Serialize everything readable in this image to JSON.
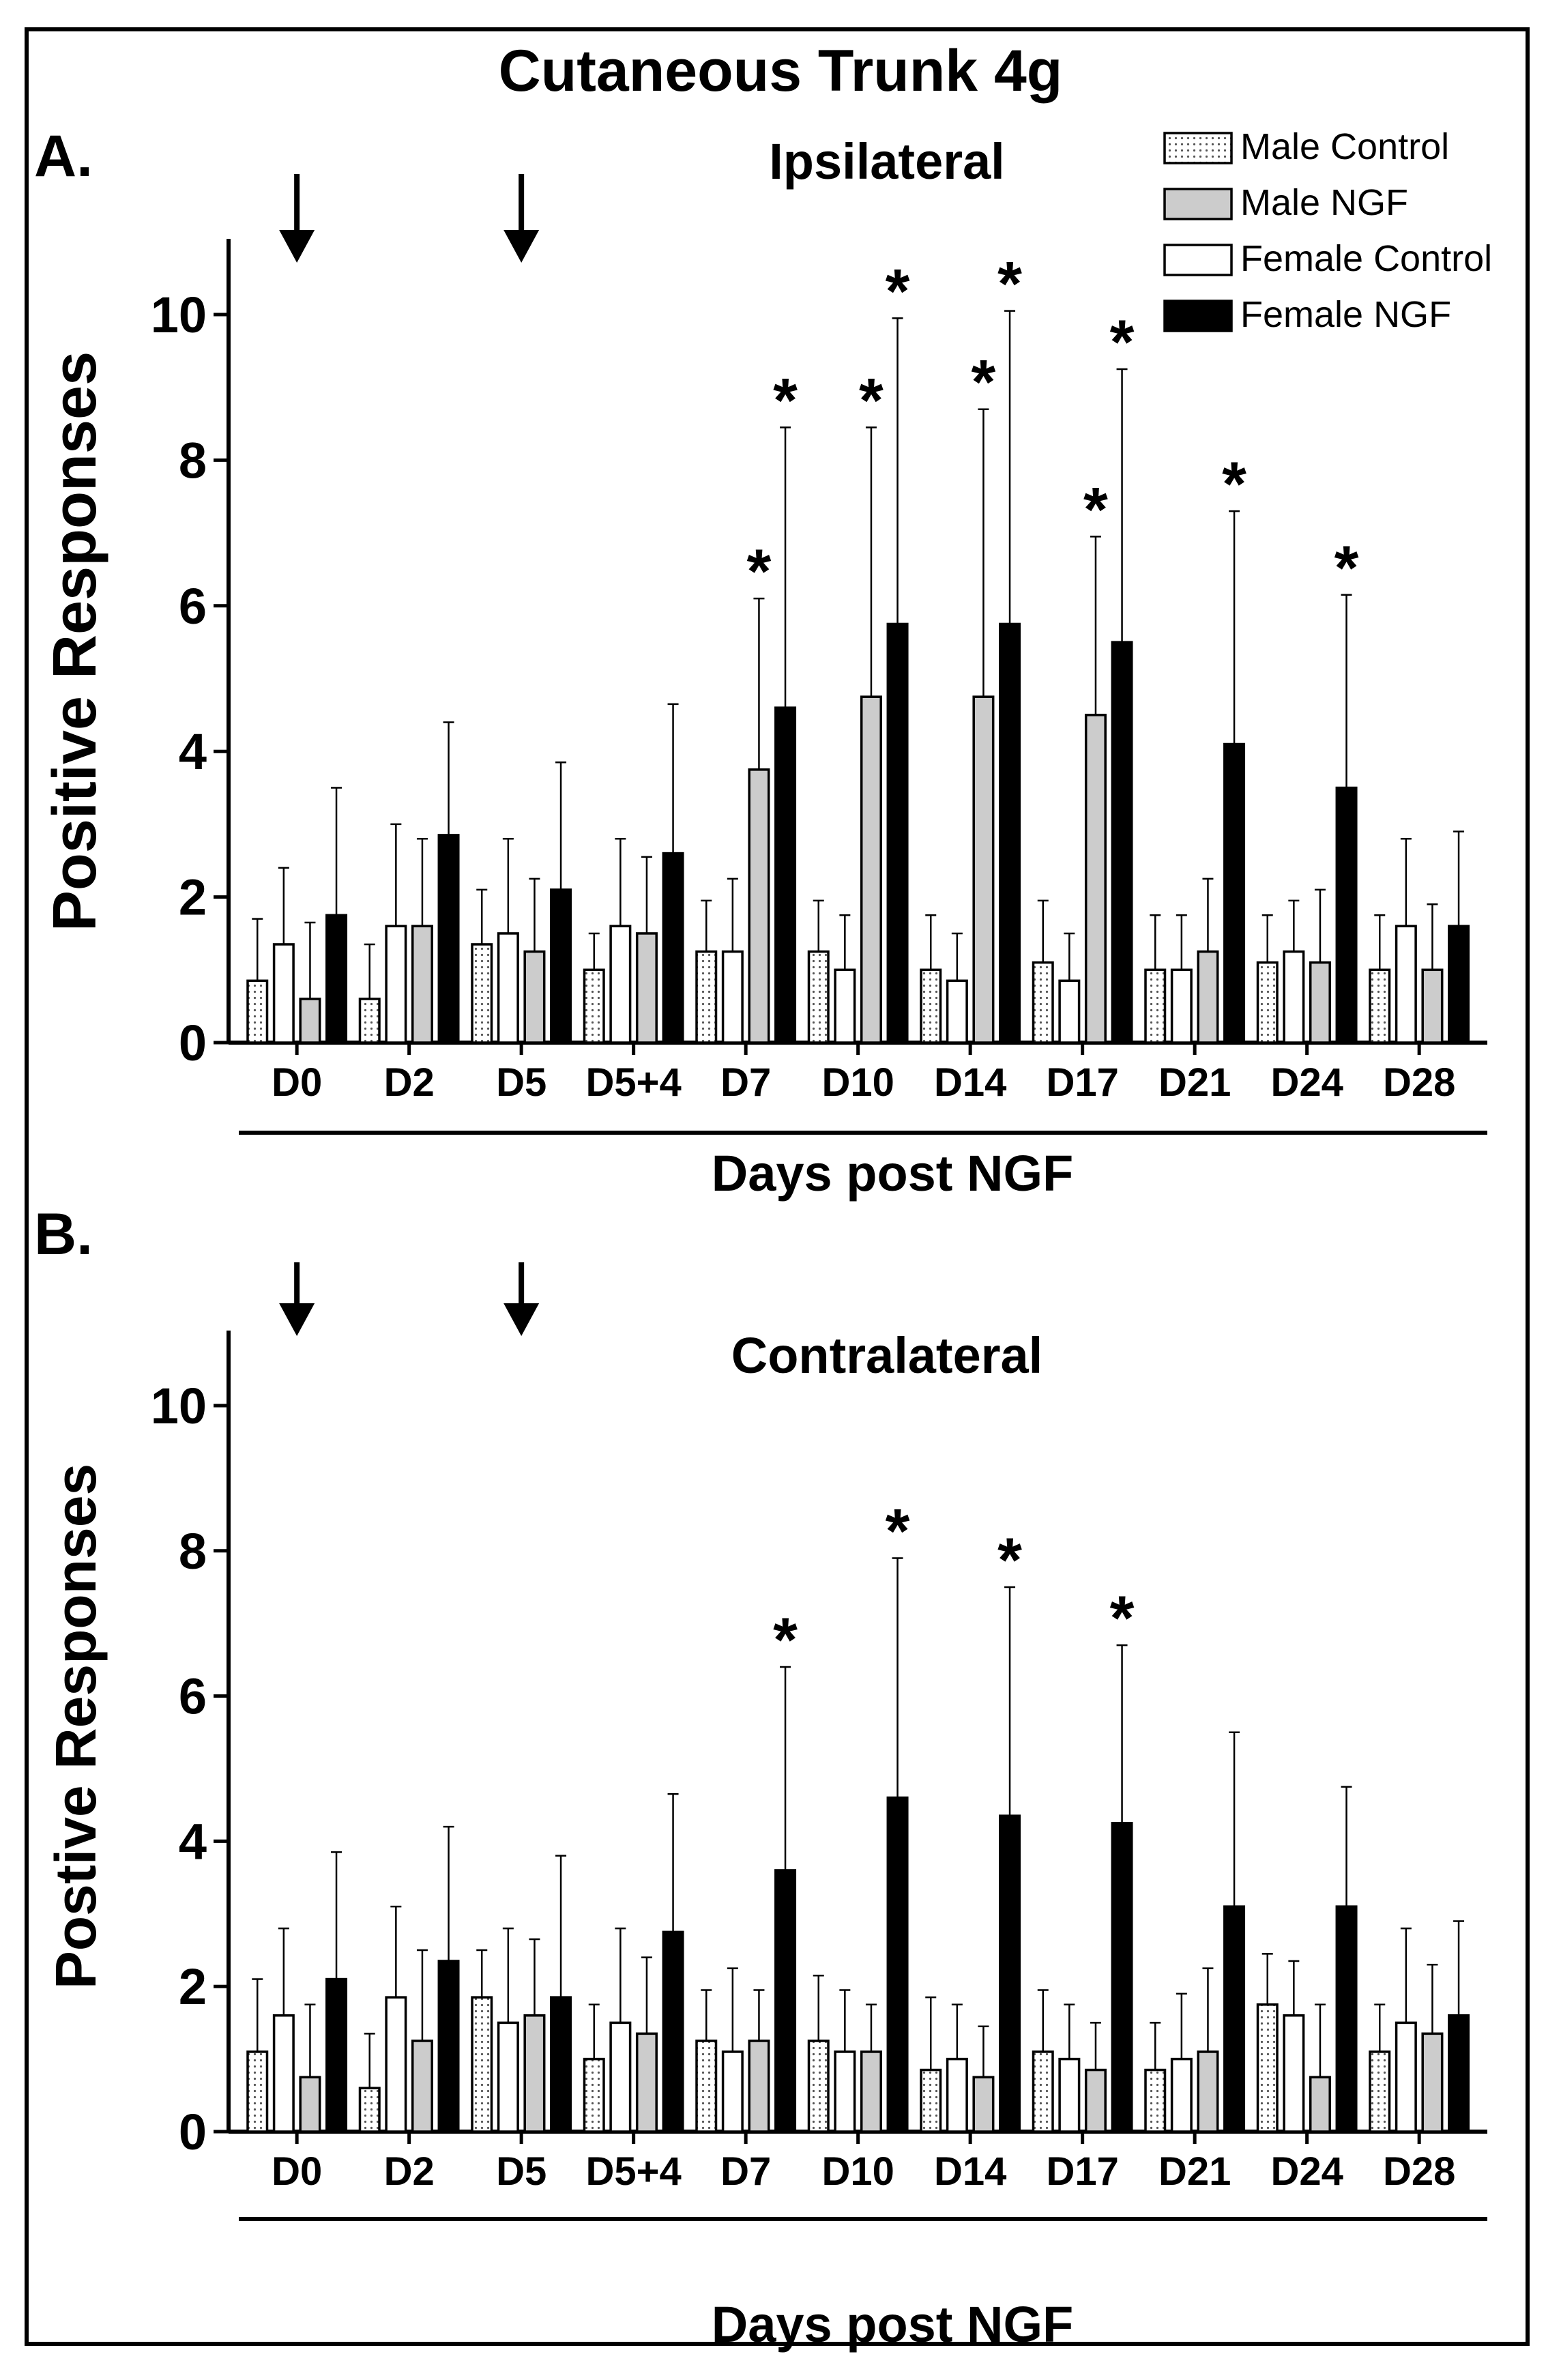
{
  "figure": {
    "title": "Cutaneous Trunk 4g",
    "panel_a_label": "A.",
    "panel_b_label": "B."
  },
  "colors": {
    "male_control": "#ffffff",
    "male_control_dots": "#555555",
    "male_ngf": "#cccccc",
    "female_control": "#ffffff",
    "female_ngf": "#000000"
  },
  "chart_data": [
    {
      "type": "bar",
      "title": "Ipsilateral",
      "xlabel": "Days post NGF",
      "ylabel": "Positive Responses",
      "ylim": [
        0,
        11
      ],
      "yticks": [
        0,
        2,
        4,
        6,
        8,
        10
      ],
      "categories": [
        "D0",
        "D2",
        "D5",
        "D5+4",
        "D7",
        "D10",
        "D14",
        "D17",
        "D21",
        "D24",
        "D28"
      ],
      "arrows_at": [
        "D0",
        "D5"
      ],
      "legend": [
        "Male Control",
        "Male NGF",
        "Female Control",
        "Female NGF"
      ],
      "series": [
        {
          "name": "Male Control",
          "values": [
            0.85,
            0.6,
            1.35,
            1.0,
            1.25,
            1.25,
            1.0,
            1.1,
            1.0,
            1.1,
            1.0
          ],
          "errors": [
            0.85,
            0.75,
            0.75,
            0.5,
            0.7,
            0.7,
            0.75,
            0.85,
            0.75,
            0.65,
            0.75
          ]
        },
        {
          "name": "Female Control",
          "values": [
            1.35,
            1.6,
            1.5,
            1.6,
            1.25,
            1.0,
            0.85,
            0.85,
            1.0,
            1.25,
            1.6
          ],
          "errors": [
            1.05,
            1.4,
            1.3,
            1.2,
            1.0,
            0.75,
            0.65,
            0.65,
            0.75,
            0.7,
            1.2
          ]
        },
        {
          "name": "Male NGF",
          "values": [
            0.6,
            1.6,
            1.25,
            1.5,
            3.75,
            4.75,
            4.75,
            4.5,
            1.25,
            1.1,
            1.0
          ],
          "errors": [
            1.05,
            1.2,
            1.0,
            1.05,
            2.35,
            3.7,
            3.95,
            2.45,
            1.0,
            1.0,
            0.9
          ]
        },
        {
          "name": "Female NGF",
          "values": [
            1.75,
            2.85,
            2.1,
            2.6,
            4.6,
            5.75,
            5.75,
            5.5,
            4.1,
            3.5,
            1.6
          ],
          "errors": [
            1.75,
            1.55,
            1.75,
            2.05,
            3.85,
            4.2,
            4.3,
            3.75,
            3.2,
            2.65,
            1.3
          ]
        }
      ],
      "significance": [
        {
          "category": "D7",
          "series": "Male NGF",
          "label": "*"
        },
        {
          "category": "D7",
          "series": "Female NGF",
          "label": "*"
        },
        {
          "category": "D10",
          "series": "Male NGF",
          "label": "*"
        },
        {
          "category": "D10",
          "series": "Female NGF",
          "label": "*"
        },
        {
          "category": "D14",
          "series": "Male NGF",
          "label": "*"
        },
        {
          "category": "D14",
          "series": "Female NGF",
          "label": "*"
        },
        {
          "category": "D17",
          "series": "Male NGF",
          "label": "*"
        },
        {
          "category": "D17",
          "series": "Female NGF",
          "label": "*"
        },
        {
          "category": "D21",
          "series": "Female NGF",
          "label": "*"
        },
        {
          "category": "D24",
          "series": "Female NGF",
          "label": "*"
        }
      ]
    },
    {
      "type": "bar",
      "title": "Contralateral",
      "xlabel": "Days post NGF",
      "ylabel": "Postive Responses",
      "ylim": [
        0,
        11
      ],
      "yticks": [
        0,
        2,
        4,
        6,
        8,
        10
      ],
      "categories": [
        "D0",
        "D2",
        "D5",
        "D5+4",
        "D7",
        "D10",
        "D14",
        "D17",
        "D21",
        "D24",
        "D28"
      ],
      "arrows_at": [
        "D0",
        "D5"
      ],
      "series": [
        {
          "name": "Male Control",
          "values": [
            1.1,
            0.6,
            1.85,
            1.0,
            1.25,
            1.25,
            0.85,
            1.1,
            0.85,
            1.75,
            1.1
          ],
          "errors": [
            1.0,
            0.75,
            0.65,
            0.75,
            0.7,
            0.9,
            1.0,
            0.85,
            0.65,
            0.7,
            0.65
          ]
        },
        {
          "name": "Female Control",
          "values": [
            1.6,
            1.85,
            1.5,
            1.5,
            1.1,
            1.1,
            1.0,
            1.0,
            1.0,
            1.6,
            1.5
          ],
          "errors": [
            1.2,
            1.25,
            1.3,
            1.3,
            1.15,
            0.85,
            0.75,
            0.75,
            0.9,
            0.75,
            1.3
          ]
        },
        {
          "name": "Male NGF",
          "values": [
            0.75,
            1.25,
            1.6,
            1.35,
            1.25,
            1.1,
            0.75,
            0.85,
            1.1,
            0.75,
            1.35
          ],
          "errors": [
            1.0,
            1.25,
            1.05,
            1.05,
            0.7,
            0.65,
            0.7,
            0.65,
            1.15,
            1.0,
            0.95
          ]
        },
        {
          "name": "Female NGF",
          "values": [
            2.1,
            2.35,
            1.85,
            2.75,
            3.6,
            4.6,
            4.35,
            4.25,
            3.1,
            3.1,
            1.6
          ],
          "errors": [
            1.75,
            1.85,
            1.95,
            1.9,
            2.8,
            3.3,
            3.15,
            2.45,
            2.4,
            1.65,
            1.3
          ]
        }
      ],
      "significance": [
        {
          "category": "D7",
          "series": "Female NGF",
          "label": "*"
        },
        {
          "category": "D10",
          "series": "Female NGF",
          "label": "*"
        },
        {
          "category": "D14",
          "series": "Female NGF",
          "label": "*"
        },
        {
          "category": "D17",
          "series": "Female NGF",
          "label": "*"
        }
      ]
    }
  ]
}
